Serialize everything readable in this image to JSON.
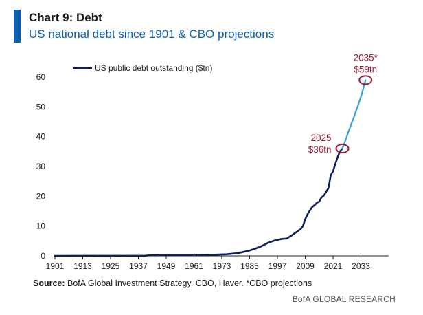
{
  "header": {
    "title": "Chart 9: Debt",
    "subtitle": "US national debt since 1901 & CBO projections"
  },
  "footer": {
    "source_label": "Source:",
    "source_text": " BofA Global Investment Strategy, CBO, Haver. *CBO projections",
    "brand": "BofA GLOBAL RESEARCH"
  },
  "colors": {
    "historical": "#0d1f5c",
    "projection": "#3aa0dc",
    "annotation": "#9e1b32",
    "axis": "#222222",
    "brand_bar": "#0b5fb0"
  },
  "chart_data": {
    "type": "line",
    "xlim": [
      1901,
      2045
    ],
    "ylim": [
      0,
      60
    ],
    "x_ticks": [
      "1901",
      "1913",
      "1925",
      "1937",
      "1949",
      "1961",
      "1973",
      "1985",
      "1997",
      "2009",
      "2021",
      "2033"
    ],
    "y_ticks": [
      "0",
      "10",
      "20",
      "30",
      "40",
      "50",
      "60"
    ],
    "legend": "top-left",
    "grid": false,
    "series": [
      {
        "name": "US public debt outstanding ($tn)",
        "style": "historical",
        "points": [
          [
            1901,
            0.0
          ],
          [
            1917,
            0.02
          ],
          [
            1920,
            0.03
          ],
          [
            1930,
            0.02
          ],
          [
            1940,
            0.05
          ],
          [
            1942,
            0.2
          ],
          [
            1946,
            0.27
          ],
          [
            1955,
            0.27
          ],
          [
            1960,
            0.29
          ],
          [
            1965,
            0.32
          ],
          [
            1970,
            0.38
          ],
          [
            1975,
            0.54
          ],
          [
            1980,
            0.91
          ],
          [
            1985,
            1.8
          ],
          [
            1988,
            2.6
          ],
          [
            1990,
            3.2
          ],
          [
            1993,
            4.4
          ],
          [
            1996,
            5.2
          ],
          [
            1999,
            5.7
          ],
          [
            2001,
            5.8
          ],
          [
            2003,
            6.8
          ],
          [
            2005,
            7.9
          ],
          [
            2007,
            9.0
          ],
          [
            2008,
            10.0
          ],
          [
            2009,
            12.3
          ],
          [
            2010,
            14.0
          ],
          [
            2011,
            15.2
          ],
          [
            2012,
            16.4
          ],
          [
            2013,
            17.0
          ],
          [
            2014,
            17.8
          ],
          [
            2015,
            18.2
          ],
          [
            2016,
            19.6
          ],
          [
            2017,
            20.2
          ],
          [
            2018,
            21.5
          ],
          [
            2019,
            22.7
          ],
          [
            2020,
            27.0
          ],
          [
            2021,
            28.4
          ],
          [
            2022,
            30.9
          ],
          [
            2023,
            33.2
          ],
          [
            2024,
            35.0
          ],
          [
            2025,
            36.0
          ]
        ]
      },
      {
        "name": "",
        "style": "projection",
        "points": [
          [
            2025,
            36.0
          ],
          [
            2026,
            38.0
          ],
          [
            2027,
            40.2
          ],
          [
            2028,
            42.4
          ],
          [
            2029,
            44.5
          ],
          [
            2030,
            46.6
          ],
          [
            2031,
            48.8
          ],
          [
            2032,
            51.0
          ],
          [
            2033,
            53.3
          ],
          [
            2034,
            56.0
          ],
          [
            2035,
            59.0
          ]
        ]
      }
    ],
    "annotations": [
      {
        "x": 2025,
        "y": 36,
        "line1": "2025",
        "line2": "$36tn",
        "placement": "left"
      },
      {
        "x": 2035,
        "y": 59,
        "line1": "2035*",
        "line2": "$59tn",
        "placement": "above"
      }
    ]
  }
}
